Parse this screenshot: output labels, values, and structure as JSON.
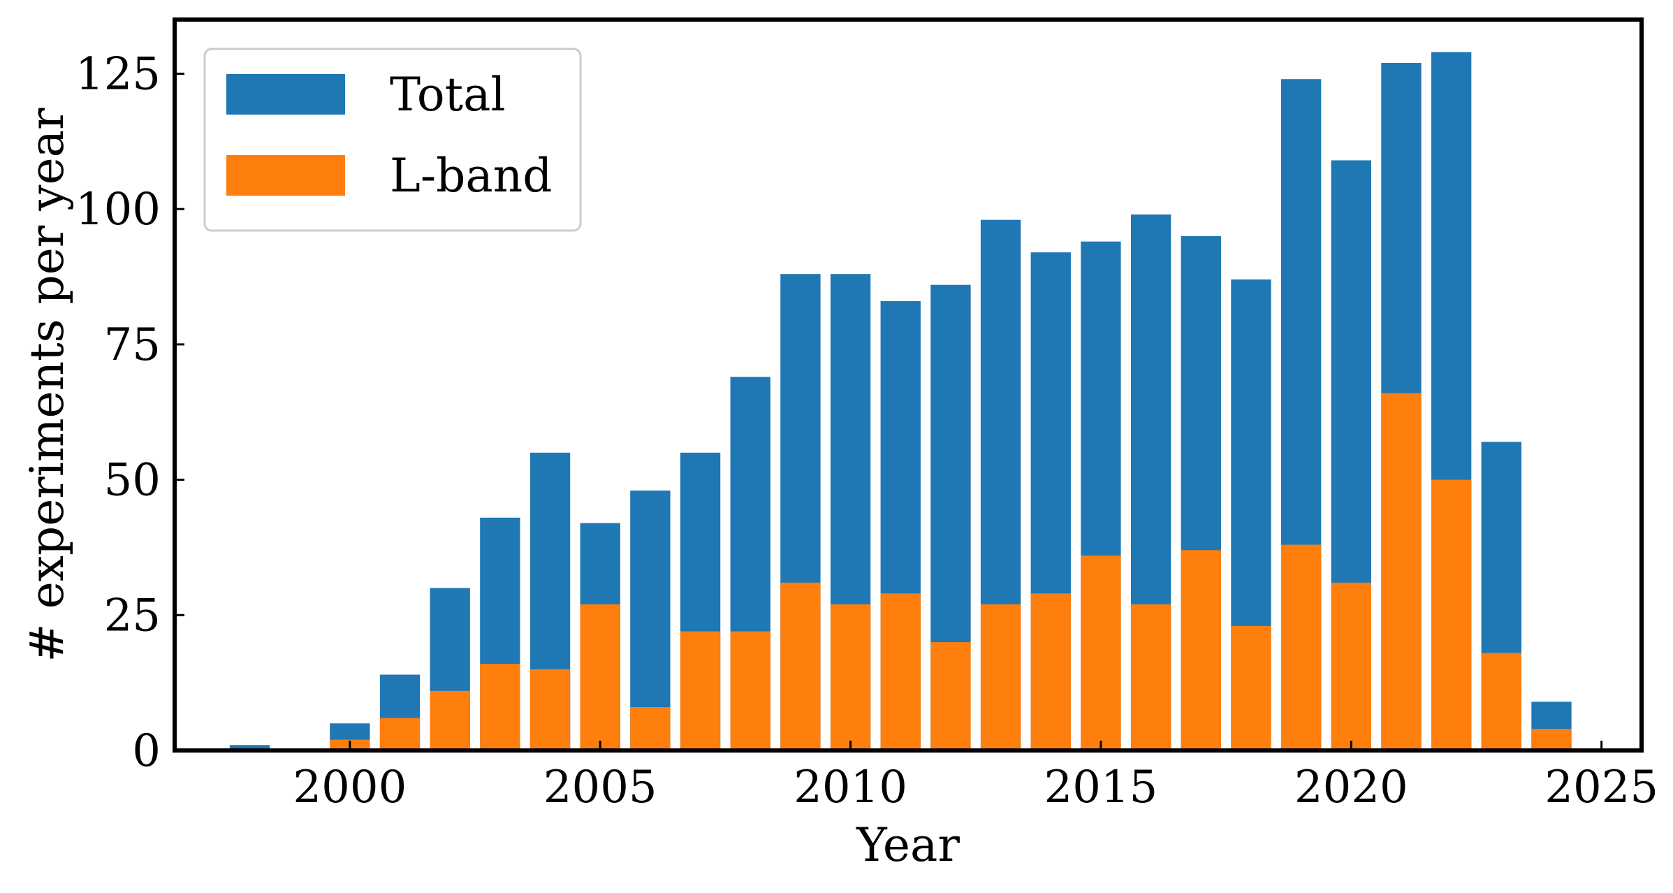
{
  "chart_data": {
    "type": "bar",
    "title": "",
    "xlabel": "Year",
    "ylabel": "# experiments per year",
    "xlim": [
      1996.5,
      2025.8
    ],
    "ylim": [
      0,
      135
    ],
    "x_ticks": [
      2000,
      2005,
      2010,
      2015,
      2020,
      2025
    ],
    "y_ticks": [
      0,
      25,
      50,
      75,
      100,
      125
    ],
    "x_tick_labels": [
      "2000",
      "2005",
      "2010",
      "2015",
      "2020",
      "2025"
    ],
    "y_tick_labels": [
      "0",
      "25",
      "50",
      "75",
      "100",
      "125"
    ],
    "grid": false,
    "legend_position": "top-left",
    "stacking": "overlaid",
    "x": [
      1998,
      1999,
      2000,
      2001,
      2002,
      2003,
      2004,
      2005,
      2006,
      2007,
      2008,
      2009,
      2010,
      2011,
      2012,
      2013,
      2014,
      2015,
      2016,
      2017,
      2018,
      2019,
      2020,
      2021,
      2022,
      2023,
      2024
    ],
    "series": [
      {
        "name": "Total",
        "color": "#1f77b4",
        "values": [
          1,
          0,
          5,
          14,
          30,
          43,
          55,
          42,
          48,
          55,
          69,
          88,
          88,
          83,
          86,
          98,
          92,
          94,
          99,
          95,
          87,
          124,
          109,
          127,
          129,
          57,
          9
        ]
      },
      {
        "name": "L-band",
        "color": "#ff7f0e",
        "values": [
          0,
          0,
          2,
          6,
          11,
          16,
          15,
          27,
          8,
          22,
          22,
          31,
          27,
          29,
          20,
          27,
          29,
          36,
          27,
          37,
          23,
          38,
          31,
          66,
          50,
          18,
          4
        ]
      }
    ]
  }
}
